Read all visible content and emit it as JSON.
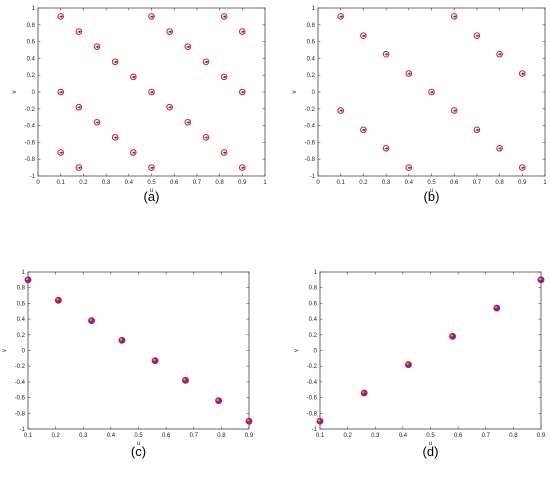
{
  "panel_labels": [
    "(a)",
    "(b)",
    "(c)",
    "(d)"
  ],
  "colors": {
    "open_marker": "#e8140c",
    "reference_marker": "#1f3bd6",
    "filled_marker": "#5a2bd0",
    "offset_marker": "#18a35c",
    "axis": "#444444"
  },
  "chart_data": [
    {
      "panel": "a",
      "type": "scatter",
      "xlabel": "u",
      "ylabel": "v",
      "xlim": [
        0,
        1
      ],
      "ylim": [
        -1,
        1
      ],
      "xticks": [
        "0",
        "0.1",
        "0.2",
        "0.3",
        "0.4",
        "0.5",
        "0.6",
        "0.7",
        "0.8",
        "0.9",
        "1"
      ],
      "yticks": [
        "-1",
        "-0.8",
        "-0.6",
        "-0.4",
        "-0.2",
        "0",
        "0.2",
        "0.4",
        "0.6",
        "0.8",
        "1"
      ],
      "grid": false,
      "series": [
        {
          "marker": "open-circle",
          "x": [
            0.1,
            0.1,
            0.1,
            0.18,
            0.18,
            0.18,
            0.26,
            0.26,
            0.34,
            0.34,
            0.42,
            0.42,
            0.5,
            0.5,
            0.5,
            0.58,
            0.58,
            0.66,
            0.66,
            0.74,
            0.74,
            0.82,
            0.82,
            0.82,
            0.9,
            0.9,
            0.9
          ],
          "y": [
            0.9,
            0,
            -0.72,
            0.72,
            -0.18,
            -0.9,
            0.54,
            -0.36,
            0.36,
            -0.54,
            0.18,
            -0.72,
            0.9,
            0,
            -0.9,
            0.72,
            -0.18,
            0.54,
            -0.36,
            0.36,
            -0.54,
            0.9,
            0.18,
            -0.72,
            0.72,
            0,
            -0.9
          ]
        }
      ]
    },
    {
      "panel": "b",
      "type": "scatter",
      "xlabel": "u",
      "ylabel": "v",
      "xlim": [
        0,
        1
      ],
      "ylim": [
        -1,
        1
      ],
      "xticks": [
        "0",
        "0.1",
        "0.2",
        "0.3",
        "0.4",
        "0.5",
        "0.6",
        "0.7",
        "0.8",
        "0.9",
        "1"
      ],
      "yticks": [
        "-1",
        "-0.8",
        "-0.6",
        "-0.4",
        "-0.2",
        "0",
        "0.2",
        "0.4",
        "0.6",
        "0.8",
        "1"
      ],
      "grid": false,
      "series": [
        {
          "marker": "open-circle",
          "x": [
            0.1,
            0.1,
            0.2,
            0.2,
            0.3,
            0.3,
            0.4,
            0.4,
            0.5,
            0.6,
            0.6,
            0.7,
            0.7,
            0.8,
            0.8,
            0.9,
            0.9
          ],
          "y": [
            0.9,
            -0.22,
            0.67,
            -0.45,
            0.45,
            -0.67,
            0.22,
            -0.9,
            0,
            0.9,
            -0.22,
            0.67,
            -0.45,
            0.45,
            -0.67,
            0.22,
            -0.9
          ]
        }
      ]
    },
    {
      "panel": "c",
      "type": "scatter",
      "xlabel": "u",
      "ylabel": "v",
      "xlim": [
        0.1,
        0.9
      ],
      "ylim": [
        -1,
        1
      ],
      "xticks": [
        "0.1",
        "0.2",
        "0.3",
        "0.4",
        "0.5",
        "0.6",
        "0.7",
        "0.8",
        "0.9"
      ],
      "yticks": [
        "-1",
        "-0.8",
        "-0.6",
        "-0.4",
        "-0.2",
        "0",
        "0.2",
        "0.4",
        "0.6",
        "0.8",
        "1"
      ],
      "grid": false,
      "series": [
        {
          "marker": "filled-circle",
          "x": [
            0.1,
            0.21,
            0.33,
            0.44,
            0.56,
            0.67,
            0.79,
            0.9
          ],
          "y": [
            0.9,
            0.64,
            0.38,
            0.13,
            -0.13,
            -0.38,
            -0.64,
            -0.9
          ]
        }
      ]
    },
    {
      "panel": "d",
      "type": "scatter",
      "xlabel": "u",
      "ylabel": "v",
      "xlim": [
        0.1,
        0.9
      ],
      "ylim": [
        -1,
        1
      ],
      "xticks": [
        "0.1",
        "0.2",
        "0.3",
        "0.4",
        "0.5",
        "0.6",
        "0.7",
        "0.8",
        "0.9"
      ],
      "yticks": [
        "-1",
        "-0.8",
        "-0.6",
        "-0.4",
        "-0.2",
        "0",
        "0.2",
        "0.4",
        "0.6",
        "0.8",
        "1"
      ],
      "grid": false,
      "series": [
        {
          "marker": "filled-circle",
          "x": [
            0.1,
            0.26,
            0.42,
            0.58,
            0.74,
            0.9
          ],
          "y": [
            -0.9,
            -0.54,
            -0.18,
            0.18,
            0.54,
            0.9
          ]
        }
      ]
    }
  ]
}
